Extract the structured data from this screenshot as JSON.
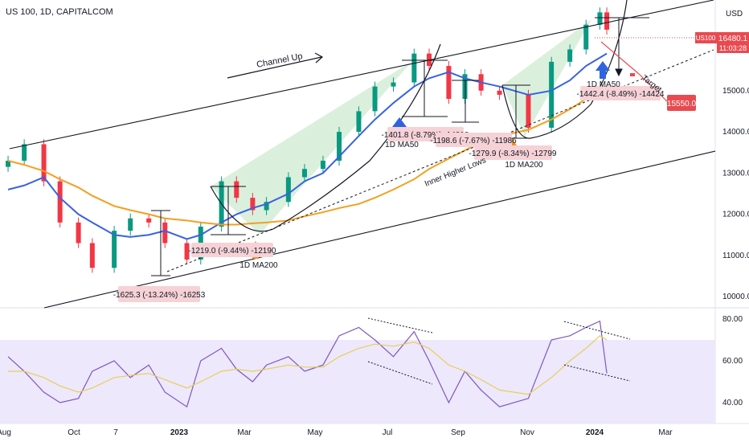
{
  "header": {
    "symbol_title": "US 100, 1D, CAPITALCOM",
    "currency": "USD"
  },
  "price_badge": {
    "ticker": "US100",
    "price": "16480.1",
    "countdown": "11:03:28"
  },
  "target_badge": {
    "value": "15550.0"
  },
  "colors": {
    "ma50": "#3a62e0",
    "ma200": "#f2a020",
    "up_candle": "#089981",
    "down_candle": "#f23645",
    "rsi_line": "#7e57c2",
    "rsi_ma": "#e6cf58",
    "rsi_band": "#ede8fb",
    "green_fill": "#cdebd0",
    "label_bg": "#f6d2d6",
    "badge_red": "#e84a4f",
    "arrow_orange": "#f0922b",
    "arrow_blue": "#2f63e0"
  },
  "annotations": {
    "channel_up": "Channel Up",
    "inner_higher_lows": "Inner Higher Lows",
    "target": "Target",
    "ma200_1": "1D MA200",
    "ma200_2": "1D MA200",
    "ma50_1": "1D MA50",
    "ma50_2": "1D MA50",
    "drop1": "-1625.3 (-13.24%) -16253",
    "drop2": "-1219.0 (-9.44%) -12190",
    "drop3": "-1401.8 (-8.79%) -14018",
    "drop4": "-1198.6 (-7.67%) -11986",
    "drop5": "-1279.9 (-8.34%) -12799",
    "drop6": "-1442.4 (-8.49%) -14424"
  },
  "chart_data": [
    {
      "type": "candlestick",
      "title": "US 100, 1D, CAPITALCOM",
      "y_ticks": [
        "16000.0",
        "15000.0",
        "14000.0",
        "13000.0",
        "12000.0",
        "11000.0",
        "10000.0"
      ],
      "y_tick_values": [
        16000,
        15000,
        14000,
        13000,
        12000,
        11000,
        10000
      ],
      "ylim": [
        9750,
        17200
      ],
      "x_ticks": [
        "Aug",
        "Oct",
        "7",
        "2023",
        "Mar",
        "May",
        "Jul",
        "Sep",
        "Nov",
        "2024",
        "Mar"
      ],
      "x": [
        "2022-08-01",
        "2022-08-15",
        "2022-09-01",
        "2022-09-15",
        "2022-10-01",
        "2022-10-13",
        "2022-11-01",
        "2022-11-15",
        "2022-12-01",
        "2022-12-15",
        "2023-01-03",
        "2023-01-15",
        "2023-02-02",
        "2023-02-15",
        "2023-03-01",
        "2023-03-13",
        "2023-04-01",
        "2023-04-15",
        "2023-05-01",
        "2023-05-15",
        "2023-06-01",
        "2023-06-15",
        "2023-07-01",
        "2023-07-19",
        "2023-08-01",
        "2023-08-18",
        "2023-09-01",
        "2023-09-15",
        "2023-10-01",
        "2023-10-26",
        "2023-11-15",
        "2023-12-01",
        "2023-12-15",
        "2023-12-27",
        "2024-01-02"
      ],
      "close": [
        13300,
        13700,
        12800,
        11800,
        11300,
        10700,
        11600,
        11900,
        11800,
        11300,
        10900,
        11700,
        12800,
        12400,
        12100,
        12300,
        12900,
        13100,
        13300,
        14000,
        14500,
        15100,
        15200,
        15900,
        15600,
        14800,
        15400,
        15000,
        14900,
        14100,
        15700,
        16000,
        16600,
        16900,
        16480
      ],
      "series": [
        {
          "name": "1D MA50",
          "values": [
            12600,
            12700,
            12900,
            12400,
            12000,
            11800,
            11500,
            11450,
            11500,
            11600,
            11400,
            11500,
            11800,
            12000,
            12150,
            12250,
            12500,
            12800,
            13000,
            13400,
            13900,
            14300,
            14700,
            15100,
            15300,
            15450,
            15300,
            15200,
            15100,
            14900,
            15000,
            15250,
            15600,
            15800,
            15900
          ]
        },
        {
          "name": "1D MA200",
          "values": [
            13300,
            13200,
            13050,
            12850,
            12650,
            12450,
            12200,
            12100,
            12000,
            11900,
            11850,
            11800,
            11750,
            11750,
            11780,
            11800,
            11850,
            11950,
            12050,
            12150,
            12250,
            12400,
            12600,
            12850,
            13100,
            13350,
            13550,
            13750,
            13900,
            14050,
            14300,
            14550,
            14800,
            14950,
            15050
          ]
        }
      ]
    },
    {
      "type": "line",
      "title": "RSI",
      "y_ticks": [
        "80.00",
        "60.00",
        "40.00"
      ],
      "y_tick_values": [
        80,
        60,
        40
      ],
      "ylim": [
        30,
        85
      ],
      "band": [
        30,
        70
      ],
      "series": [
        {
          "name": "RSI",
          "values": [
            62,
            55,
            45,
            40,
            42,
            55,
            60,
            52,
            58,
            45,
            38,
            60,
            66,
            56,
            50,
            58,
            62,
            55,
            58,
            72,
            76,
            70,
            62,
            74,
            60,
            40,
            55,
            46,
            38,
            42,
            70,
            72,
            76,
            79,
            54
          ]
        },
        {
          "name": "RSI MA",
          "values": [
            55,
            55,
            52,
            48,
            45,
            47,
            52,
            53,
            54,
            51,
            47,
            50,
            55,
            56,
            55,
            56,
            58,
            57,
            57,
            62,
            66,
            68,
            67,
            69,
            66,
            58,
            55,
            51,
            46,
            44,
            52,
            60,
            66,
            72,
            70
          ]
        }
      ]
    }
  ]
}
